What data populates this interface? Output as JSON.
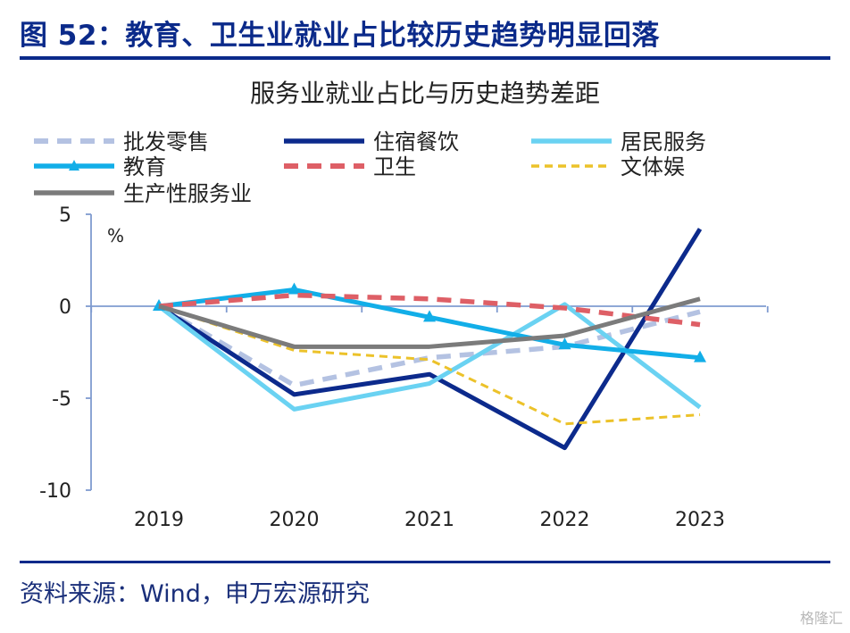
{
  "figure": {
    "title": "图 52：教育、卫生业就业占比较历史趋势明显回落",
    "source": "资料来源：Wind，申万宏源研究",
    "watermark": "格隆汇"
  },
  "chart_data": {
    "type": "line",
    "title": "服务业就业占比与历史趋势差距",
    "unit": "%",
    "x": [
      "2019",
      "2020",
      "2021",
      "2022",
      "2023"
    ],
    "ylim": [
      -10,
      5
    ],
    "yticks": [
      5,
      0,
      -5,
      -10
    ],
    "legend_position": "top",
    "grid": false,
    "series": [
      {
        "name": "批发零售",
        "values": [
          0,
          -4.3,
          -2.8,
          -2.2,
          -0.3
        ],
        "color": "#b4c2e2",
        "style": "dashed"
      },
      {
        "name": "住宿餐饮",
        "values": [
          0,
          -4.8,
          -3.7,
          -7.7,
          4.2
        ],
        "color": "#0c2a8c",
        "style": "solid"
      },
      {
        "name": "居民服务",
        "values": [
          0,
          -5.6,
          -4.2,
          0.1,
          -5.5
        ],
        "color": "#6ad2f2",
        "style": "solid"
      },
      {
        "name": "教育",
        "values": [
          0,
          0.9,
          -0.6,
          -2.1,
          -2.8
        ],
        "color": "#12aee8",
        "style": "solid-triangle"
      },
      {
        "name": "卫生",
        "values": [
          0,
          0.6,
          0.4,
          -0.1,
          -1.0
        ],
        "color": "#de5f66",
        "style": "dashed"
      },
      {
        "name": "文体娱",
        "values": [
          0,
          -2.4,
          -2.9,
          -6.4,
          -5.9
        ],
        "color": "#ecc22a",
        "style": "dotted"
      },
      {
        "name": "生产性服务业",
        "values": [
          0,
          -2.2,
          -2.2,
          -1.6,
          0.4
        ],
        "color": "#7b7b7b",
        "style": "solid"
      }
    ]
  }
}
